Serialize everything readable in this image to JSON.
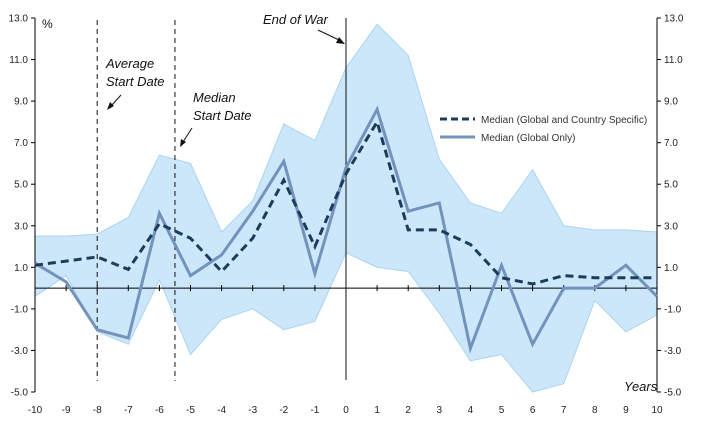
{
  "chart_data": {
    "type": "line",
    "title": "",
    "xlabel": "Years",
    "ylabel": "%",
    "xlim": [
      -10,
      10
    ],
    "ylim": [
      -5,
      13
    ],
    "x": [
      -10,
      -9,
      -8,
      -7,
      -6,
      -5,
      -4,
      -3,
      -2,
      -1,
      0,
      1,
      2,
      3,
      4,
      5,
      6,
      7,
      8,
      9,
      10
    ],
    "x_ticks": [
      "-10",
      "-9",
      "-8",
      "-7",
      "-6",
      "-5",
      "-4",
      "-3",
      "-2",
      "-1",
      "0",
      "1",
      "2",
      "3",
      "4",
      "5",
      "6",
      "7",
      "8",
      "9",
      "10"
    ],
    "y_ticks": [
      "-5.0",
      "-3.0",
      "-1.0",
      "1.0",
      "3.0",
      "5.0",
      "7.0",
      "9.0",
      "11.0",
      "13.0"
    ],
    "grid": false,
    "legend_position": "right",
    "band": {
      "upper": [
        2.5,
        2.5,
        2.6,
        3.4,
        6.4,
        6.0,
        2.7,
        4.2,
        7.9,
        7.1,
        10.6,
        12.7,
        11.2,
        6.2,
        4.1,
        3.6,
        5.7,
        3.0,
        2.8,
        2.8,
        2.7
      ],
      "lower": [
        -0.4,
        0.6,
        -2.1,
        -2.7,
        0.4,
        -3.2,
        -1.5,
        -1.0,
        -2.0,
        -1.6,
        1.7,
        1.0,
        0.8,
        -1.2,
        -3.5,
        -3.2,
        -5.0,
        -4.6,
        -0.6,
        -2.1,
        -1.3
      ]
    },
    "series": [
      {
        "name": "Median (Global and Country Specific)",
        "style": "dashed",
        "color": "#1c3d5a",
        "values": [
          1.1,
          1.3,
          1.5,
          0.9,
          3.1,
          2.4,
          0.8,
          2.4,
          5.2,
          2.0,
          5.5,
          8.0,
          2.8,
          2.8,
          2.1,
          0.5,
          0.2,
          0.6,
          0.5,
          0.5,
          0.5
        ]
      },
      {
        "name": "Median (Global Only)",
        "style": "solid",
        "color": "#7393bd",
        "values": [
          1.2,
          0.3,
          -2.0,
          -2.4,
          3.6,
          0.6,
          1.6,
          3.7,
          6.1,
          0.7,
          5.8,
          8.6,
          3.7,
          4.1,
          -2.9,
          1.1,
          -2.7,
          0.0,
          0.0,
          1.1,
          -0.4
        ]
      }
    ],
    "annotations": [
      {
        "line1": "Average",
        "line2": "Start Date",
        "x": -8.0,
        "style": "dashed"
      },
      {
        "line1": "Median",
        "line2": "Start Date",
        "x": -5.5,
        "style": "dashed"
      },
      {
        "line1": "End of War",
        "line2": "",
        "x": 0,
        "style": "solid"
      }
    ],
    "colors": {
      "band_fill": "#cde7fa",
      "band_edge": "#a9d4f2",
      "axis": "#000000"
    }
  }
}
